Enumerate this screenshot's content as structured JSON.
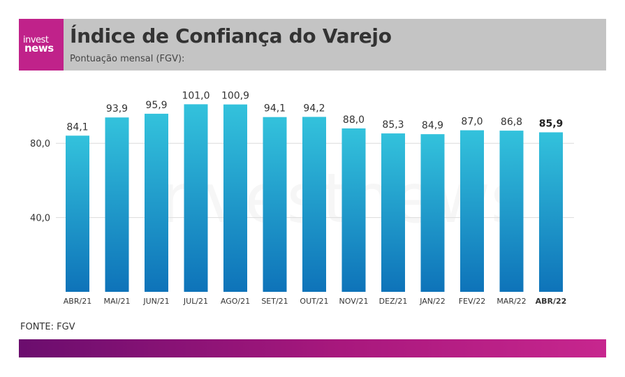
{
  "logo": {
    "line1": "invest",
    "line2": "news"
  },
  "header": {
    "title": "Índice de Confiança do Varejo",
    "subtitle": "Pontuação mensal (FGV):"
  },
  "watermark": "investnews",
  "source": "FONTE: FGV",
  "colors": {
    "bar_top": "#33c2dc",
    "bar_bottom": "#0e73b9",
    "header_bg": "#c4c4c4",
    "logo_bg": "#c0228a"
  },
  "chart_data": {
    "type": "bar",
    "categories": [
      "ABR/21",
      "MAI/21",
      "JUN/21",
      "JUL/21",
      "AGO/21",
      "SET/21",
      "OUT/21",
      "NOV/21",
      "DEZ/21",
      "JAN/22",
      "FEV/22",
      "MAR/22",
      "ABR/22"
    ],
    "values": [
      84.1,
      93.9,
      95.9,
      101.0,
      100.9,
      94.1,
      94.2,
      88.0,
      85.3,
      84.9,
      87.0,
      86.8,
      85.9
    ],
    "value_labels": [
      "84,1",
      "93,9",
      "95,9",
      "101,0",
      "100,9",
      "94,1",
      "94,2",
      "88,0",
      "85,3",
      "84,9",
      "87,0",
      "86,8",
      "85,9"
    ],
    "highlight_index": 12,
    "yticks": [
      40,
      80
    ],
    "ytick_labels": [
      "40,0",
      "80,0"
    ],
    "ylim": [
      0,
      115
    ],
    "grid": true
  }
}
